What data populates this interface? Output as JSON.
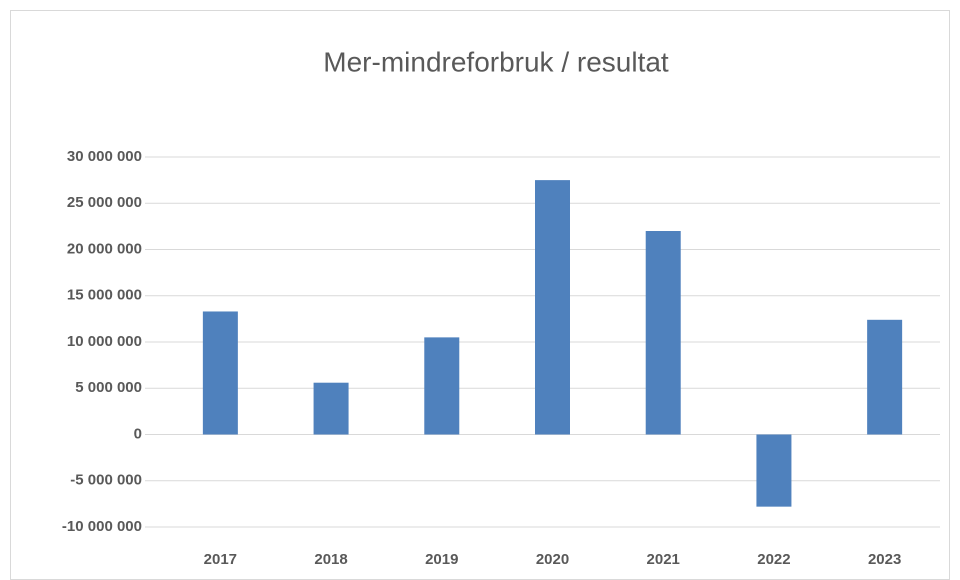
{
  "chart_data": {
    "type": "bar",
    "title": "Mer-mindreforbruk / resultat",
    "categories": [
      "2017",
      "2018",
      "2019",
      "2020",
      "2021",
      "2022",
      "2023"
    ],
    "values": [
      13300000,
      5600000,
      10500000,
      27500000,
      22000000,
      -7800000,
      12400000
    ],
    "color": "#4f81bd",
    "ylim": [
      -10000000,
      30000000
    ],
    "yticks": [
      {
        "value": -10000000,
        "label": "-10 000 000"
      },
      {
        "value": -5000000,
        "label": "-5 000 000"
      },
      0,
      {
        "value": 5000000,
        "label": "5 000 000"
      },
      {
        "value": 10000000,
        "label": "10 000 000"
      },
      {
        "value": 15000000,
        "label": "15 000 000"
      },
      {
        "value": 20000000,
        "label": "20 000 000"
      },
      {
        "value": 25000000,
        "label": "25 000 000"
      },
      {
        "value": 30000000,
        "label": "30 000 000"
      }
    ],
    "grid": true
  }
}
